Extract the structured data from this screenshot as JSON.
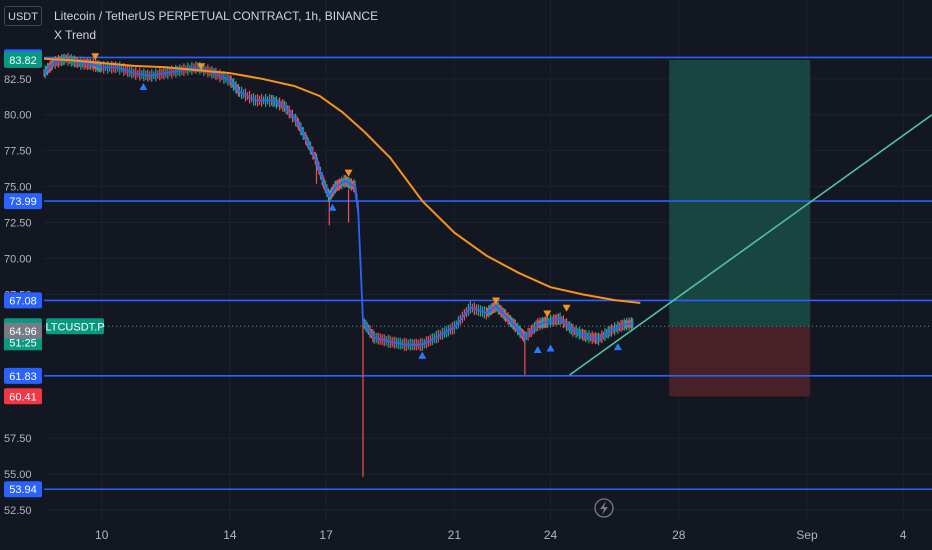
{
  "header": {
    "currency": "USDT",
    "title": "Litecoin / TetherUS PERPETUAL CONTRACT, 1h, BINANCE",
    "indicator": "X Trend"
  },
  "colors": {
    "background": "#131722",
    "candle_up": "#26a69a",
    "candle_down": "#ef5350",
    "trend_line": "#2962ff",
    "ma": "#f7931a",
    "level": "#2962ff",
    "target_zone": "#1b4a44",
    "stop_zone": "#4a2228",
    "trendline_diag": "#4fc3a1",
    "marker_up": "#2979ff",
    "marker_down": "#f7931a"
  },
  "chart_data": {
    "type": "candlestick",
    "x_label": "",
    "y_label": "",
    "y_range": [
      51.8,
      85.2
    ],
    "x_range_days": [
      8.2,
      35.9
    ],
    "y_ticks": [
      "82.50",
      "80.00",
      "77.50",
      "75.00",
      "72.50",
      "70.00",
      "67.50",
      "57.50",
      "55.00",
      "52.50"
    ],
    "y_tick_values": [
      82.5,
      80.0,
      77.5,
      75.0,
      72.5,
      70.0,
      67.5,
      57.5,
      55.0,
      52.5
    ],
    "x_ticks": [
      "10",
      "14",
      "17",
      "21",
      "24",
      "28",
      "Sep",
      "4"
    ],
    "x_tick_values": [
      10,
      14,
      17,
      21,
      24,
      28,
      32,
      35
    ],
    "horizontal_levels": [
      {
        "label": "83.99",
        "value": 83.99,
        "color": "#2962ff"
      },
      {
        "label": "73.99",
        "value": 73.99,
        "color": "#2962ff"
      },
      {
        "label": "67.08",
        "value": 67.08,
        "color": "#2962ff"
      },
      {
        "label": "61.83",
        "value": 61.83,
        "color": "#2962ff"
      },
      {
        "label": "53.94",
        "value": 53.94,
        "color": "#2962ff"
      }
    ],
    "price_badges": [
      {
        "label": "83.82",
        "value": 83.82,
        "color": "#089981"
      },
      {
        "label": "65.28",
        "value": 65.28,
        "color": "#089981",
        "tag": "LTCUSDT.P",
        "sub": "51:25"
      },
      {
        "label": "64.96",
        "value": 64.96,
        "color": "#787b86"
      },
      {
        "label": "60.41",
        "value": 60.41,
        "color": "#f23645"
      }
    ],
    "last_price": 65.28,
    "price_path": [
      [
        8.2,
        82.9
      ],
      [
        8.5,
        83.6
      ],
      [
        8.9,
        83.9
      ],
      [
        9.3,
        83.6
      ],
      [
        9.7,
        83.5
      ],
      [
        10.0,
        83.3
      ],
      [
        10.5,
        83.3
      ],
      [
        11.0,
        82.9
      ],
      [
        11.5,
        82.7
      ],
      [
        12.0,
        82.9
      ],
      [
        12.5,
        83.1
      ],
      [
        13.0,
        83.3
      ],
      [
        13.5,
        82.9
      ],
      [
        14.0,
        82.4
      ],
      [
        14.3,
        81.6
      ],
      [
        14.8,
        81.0
      ],
      [
        15.3,
        81.0
      ],
      [
        15.7,
        80.6
      ],
      [
        16.1,
        79.5
      ],
      [
        16.4,
        78.2
      ],
      [
        16.7,
        76.8
      ],
      [
        16.9,
        75.4
      ],
      [
        17.1,
        74.3
      ],
      [
        17.3,
        75.0
      ],
      [
        17.6,
        75.4
      ],
      [
        17.9,
        75.0
      ],
      [
        18.0,
        73.4
      ],
      [
        18.15,
        65.6
      ],
      [
        18.5,
        64.5
      ],
      [
        19.0,
        64.2
      ],
      [
        19.5,
        64.0
      ],
      [
        20.0,
        64.0
      ],
      [
        20.5,
        64.6
      ],
      [
        21.0,
        65.2
      ],
      [
        21.5,
        66.6
      ],
      [
        22.0,
        66.2
      ],
      [
        22.3,
        66.7
      ],
      [
        22.6,
        66.0
      ],
      [
        22.9,
        65.3
      ],
      [
        23.2,
        64.5
      ],
      [
        23.6,
        65.4
      ],
      [
        23.9,
        65.6
      ],
      [
        24.3,
        65.8
      ],
      [
        24.7,
        65.0
      ],
      [
        25.1,
        64.6
      ],
      [
        25.5,
        64.4
      ],
      [
        25.9,
        65.0
      ],
      [
        26.3,
        65.4
      ],
      [
        26.6,
        65.5
      ]
    ],
    "ma_path": [
      [
        8.2,
        83.9
      ],
      [
        9.0,
        83.8
      ],
      [
        10.0,
        83.6
      ],
      [
        11.0,
        83.4
      ],
      [
        12.0,
        83.3
      ],
      [
        13.0,
        83.1
      ],
      [
        14.0,
        82.9
      ],
      [
        15.0,
        82.5
      ],
      [
        16.0,
        82.0
      ],
      [
        16.8,
        81.3
      ],
      [
        17.5,
        80.2
      ],
      [
        18.2,
        78.8
      ],
      [
        19.0,
        77.0
      ],
      [
        20.0,
        74.0
      ],
      [
        21.0,
        71.8
      ],
      [
        22.0,
        70.2
      ],
      [
        23.0,
        69.0
      ],
      [
        24.0,
        68.0
      ],
      [
        25.0,
        67.5
      ],
      [
        26.0,
        67.1
      ],
      [
        26.8,
        66.9
      ]
    ],
    "spikes": [
      [
        16.7,
        77.3,
        75.2
      ],
      [
        17.1,
        74.3,
        72.3
      ],
      [
        17.7,
        74.8,
        72.5
      ],
      [
        18.15,
        65.8,
        54.8
      ],
      [
        23.2,
        64.9,
        61.9
      ]
    ],
    "markers_down": [
      [
        9.8,
        84.0
      ],
      [
        13.1,
        83.3
      ],
      [
        17.7,
        75.9
      ],
      [
        22.3,
        67.0
      ],
      [
        23.9,
        66.1
      ],
      [
        24.5,
        66.5
      ]
    ],
    "markers_up": [
      [
        11.3,
        82.0
      ],
      [
        17.2,
        73.6
      ],
      [
        20.0,
        63.3
      ],
      [
        23.6,
        63.7
      ],
      [
        24.0,
        63.8
      ],
      [
        26.1,
        63.9
      ]
    ],
    "target_zone": {
      "x0": 27.7,
      "x1": 32.1,
      "y0": 65.3,
      "y1": 83.8
    },
    "stop_zone": {
      "x0": 27.7,
      "x1": 32.1,
      "y0": 60.4,
      "y1": 65.3
    },
    "diagonal_line": {
      "x0": 24.6,
      "y0": 61.9,
      "x1": 35.9,
      "y1": 80.0
    }
  }
}
